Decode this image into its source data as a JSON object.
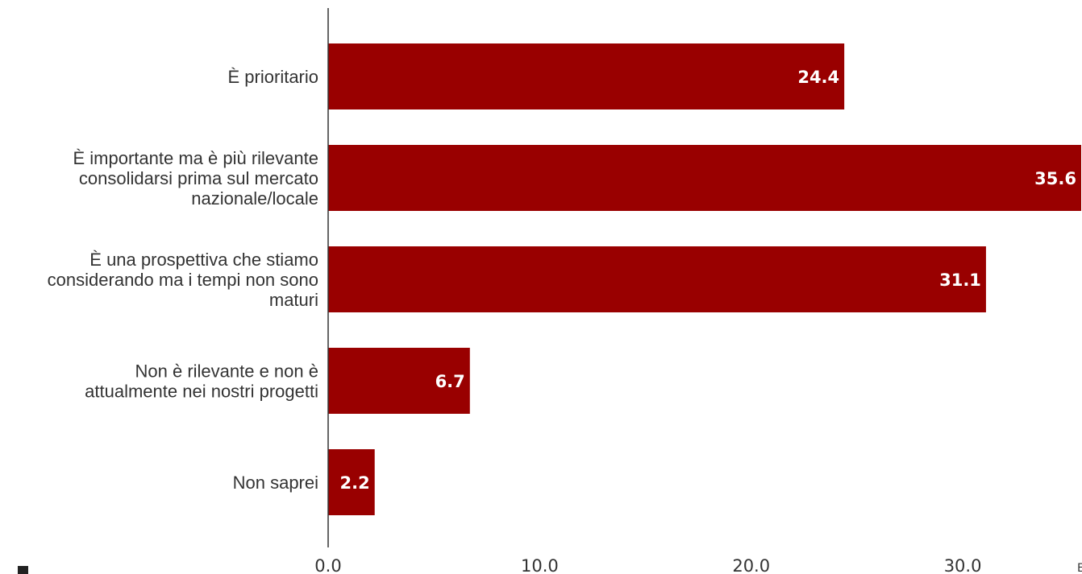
{
  "chart_data": {
    "type": "bar",
    "orientation": "horizontal",
    "categories": [
      "È prioritario",
      "È importante ma è più rilevante consolidarsi prima sul mercato nazionale/locale",
      "È una prospettiva che stiamo considerando ma i tempi non sono maturi",
      "Non è rilevante e non è attualmente nei nostri progetti",
      "Non saprei"
    ],
    "category_lines": [
      [
        "È prioritario"
      ],
      [
        "È importante ma è più rilevante",
        "consolidarsi prima sul mercato",
        "nazionale/locale"
      ],
      [
        "È una prospettiva che stiamo",
        "considerando ma i tempi non sono",
        "maturi"
      ],
      [
        "Non è rilevante e non è",
        "attualmente nei nostri progetti"
      ],
      [
        "Non saprei"
      ]
    ],
    "values": [
      24.4,
      35.6,
      31.1,
      6.7,
      2.2
    ],
    "value_labels": [
      "24.4",
      "35.6",
      "31.1",
      "6.7",
      "2.2"
    ],
    "xticks": [
      "0.0",
      "10.0",
      "20.0",
      "30.0"
    ],
    "xtick_values": [
      0,
      10,
      20,
      30
    ],
    "xlim": [
      0,
      35.6
    ],
    "title": "",
    "xlabel": "",
    "ylabel": "",
    "grid": false,
    "legend": "none",
    "bar_color": "#990000",
    "value_label_color": "#ffffff",
    "text_color": "#333333",
    "axis_color": "#333333"
  }
}
